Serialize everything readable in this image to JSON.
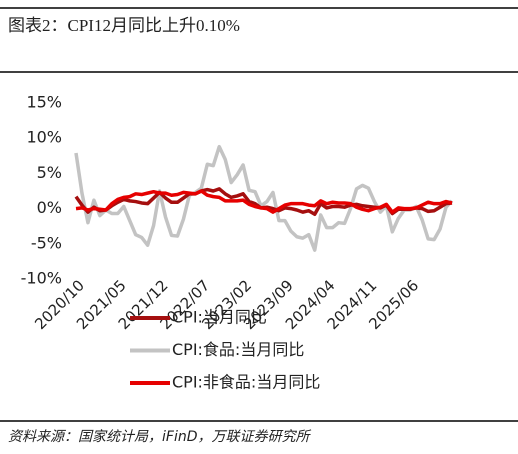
{
  "chart_data": {
    "type": "line",
    "title": "图表2：CPI12月同比上升0.10%",
    "source": "资料来源：国家统计局，iFinD，万联证券研究所",
    "categories": [
      null,
      "2020/10",
      null,
      null,
      null,
      null,
      null,
      null,
      "2021/05",
      null,
      null,
      null,
      null,
      null,
      null,
      "2021/12",
      null,
      null,
      null,
      null,
      null,
      null,
      "2022/07",
      null,
      null,
      null,
      null,
      null,
      null,
      "2023/02",
      null,
      null,
      null,
      null,
      null,
      null,
      "2023/09",
      null,
      null,
      null,
      null,
      null,
      null,
      "2024/04",
      null,
      null,
      null,
      null,
      null,
      null,
      "2024/11",
      null,
      null,
      null,
      null,
      null,
      null,
      "2025/06",
      null,
      null,
      null,
      null,
      null,
      null
    ],
    "series": [
      {
        "name": "CPI:当月同比",
        "color": "#a50f0f",
        "values": [
          1.7,
          0.5,
          -0.5,
          0.2,
          -0.3,
          -0.2,
          0.4,
          0.9,
          1.3,
          1.1,
          1.0,
          0.8,
          0.7,
          1.5,
          2.3,
          1.5,
          0.9,
          0.9,
          1.5,
          2.1,
          2.1,
          2.5,
          2.7,
          2.5,
          2.8,
          2.1,
          1.6,
          1.8,
          2.1,
          1.0,
          0.7,
          0.1,
          0.2,
          0.0,
          -0.3,
          0.1,
          0.0,
          -0.2,
          -0.5,
          -0.3,
          -0.8,
          0.7,
          0.1,
          0.3,
          0.3,
          0.2,
          0.5,
          0.6,
          0.4,
          0.3,
          0.2,
          0.1,
          0.5,
          -0.7,
          -0.1,
          -0.1,
          -0.1,
          0.1,
          0.0,
          -0.4,
          -0.3,
          0.2,
          0.7,
          0.8
        ]
      },
      {
        "name": "CPI:食品:当月同比",
        "color": "#c3c3c3",
        "values": [
          7.9,
          2.2,
          -2.0,
          1.2,
          -1.0,
          -0.2,
          -0.7,
          -0.7,
          0.3,
          -1.7,
          -3.7,
          -4.1,
          -5.2,
          -2.4,
          2.5,
          -1.2,
          -3.8,
          -3.9,
          -1.5,
          1.9,
          2.3,
          2.9,
          6.3,
          6.1,
          8.8,
          7.0,
          3.7,
          4.8,
          6.2,
          2.6,
          2.4,
          0.4,
          1.0,
          2.3,
          -1.7,
          -1.7,
          -3.2,
          -4.0,
          -4.2,
          -3.7,
          -5.9,
          -0.9,
          -2.7,
          -2.7,
          -2.0,
          -2.1,
          0.0,
          2.8,
          3.3,
          2.9,
          1.0,
          -0.5,
          0.4,
          -3.3,
          -1.4,
          -0.2,
          -0.2,
          0.3,
          -1.6,
          -4.3,
          -4.4,
          -2.9,
          0.2,
          1.1
        ]
      },
      {
        "name": "CPI:非食品:当月同比",
        "color": "#e60000",
        "values": [
          0.0,
          0.1,
          -0.2,
          0.0,
          -0.1,
          -0.2,
          0.7,
          1.3,
          1.6,
          1.7,
          2.1,
          2.0,
          2.2,
          2.4,
          2.2,
          2.2,
          1.9,
          2.0,
          2.3,
          2.2,
          2.1,
          2.5,
          1.9,
          1.7,
          1.6,
          1.1,
          1.1,
          1.1,
          1.2,
          0.6,
          0.3,
          0.1,
          0.0,
          -0.5,
          0.0,
          0.5,
          0.7,
          0.7,
          0.7,
          0.5,
          0.4,
          1.1,
          0.7,
          0.9,
          0.8,
          0.8,
          0.7,
          0.2,
          -0.1,
          -0.3,
          0.0,
          0.2,
          0.6,
          -0.5,
          0.1,
          0.0,
          0.0,
          0.1,
          0.5,
          0.9,
          0.7,
          0.7,
          1.0,
          0.8
        ]
      }
    ],
    "ylim": [
      -10,
      15
    ],
    "yticks": [
      {
        "value": -10,
        "label": "-10%"
      },
      {
        "value": -5,
        "label": "-5%"
      },
      {
        "value": 0,
        "label": "0%"
      },
      {
        "value": 5,
        "label": "5%"
      },
      {
        "value": 10,
        "label": "10%"
      },
      {
        "value": 15,
        "label": "15%"
      }
    ]
  }
}
